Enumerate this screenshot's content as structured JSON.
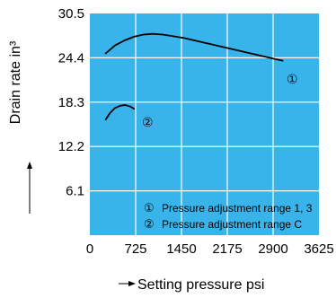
{
  "chart_data": {
    "type": "line",
    "title": "",
    "xlabel": "Setting pressure psi",
    "ylabel": "Drain rate in³",
    "xlim": [
      0,
      3625
    ],
    "ylim": [
      0,
      30.5
    ],
    "x_ticks": [
      "0",
      "725",
      "1450",
      "2175",
      "2900",
      "3625"
    ],
    "y_ticks": [
      "6.1",
      "12.2",
      "18.3",
      "24.4",
      "30.5"
    ],
    "grid": true,
    "plot_background": "#38b4ea",
    "grid_color": "#ffffff",
    "line_color": "#000000",
    "series": [
      {
        "name": "Pressure adjustment range 1, 3",
        "marker": "①",
        "x": [
          250,
          400,
          550,
          700,
          850,
          1000,
          1150,
          1300,
          1500,
          1700,
          1900,
          2100,
          2300,
          2500,
          2700,
          2900,
          3050
        ],
        "y": [
          25.0,
          26.1,
          26.8,
          27.3,
          27.6,
          27.7,
          27.6,
          27.4,
          27.1,
          26.7,
          26.3,
          25.9,
          25.5,
          25.1,
          24.7,
          24.3,
          24.0
        ]
      },
      {
        "name": "Pressure adjustment range C",
        "marker": "②",
        "x": [
          250,
          320,
          400,
          480,
          560,
          640,
          700
        ],
        "y": [
          15.9,
          16.8,
          17.5,
          17.8,
          17.9,
          17.7,
          17.4
        ]
      }
    ],
    "legend": {
      "placement": "bottom-right",
      "entries": [
        {
          "marker": "①",
          "text": "Pressure adjustment range  1, 3"
        },
        {
          "marker": "②",
          "text": "Pressure adjustment range  C"
        }
      ]
    }
  }
}
